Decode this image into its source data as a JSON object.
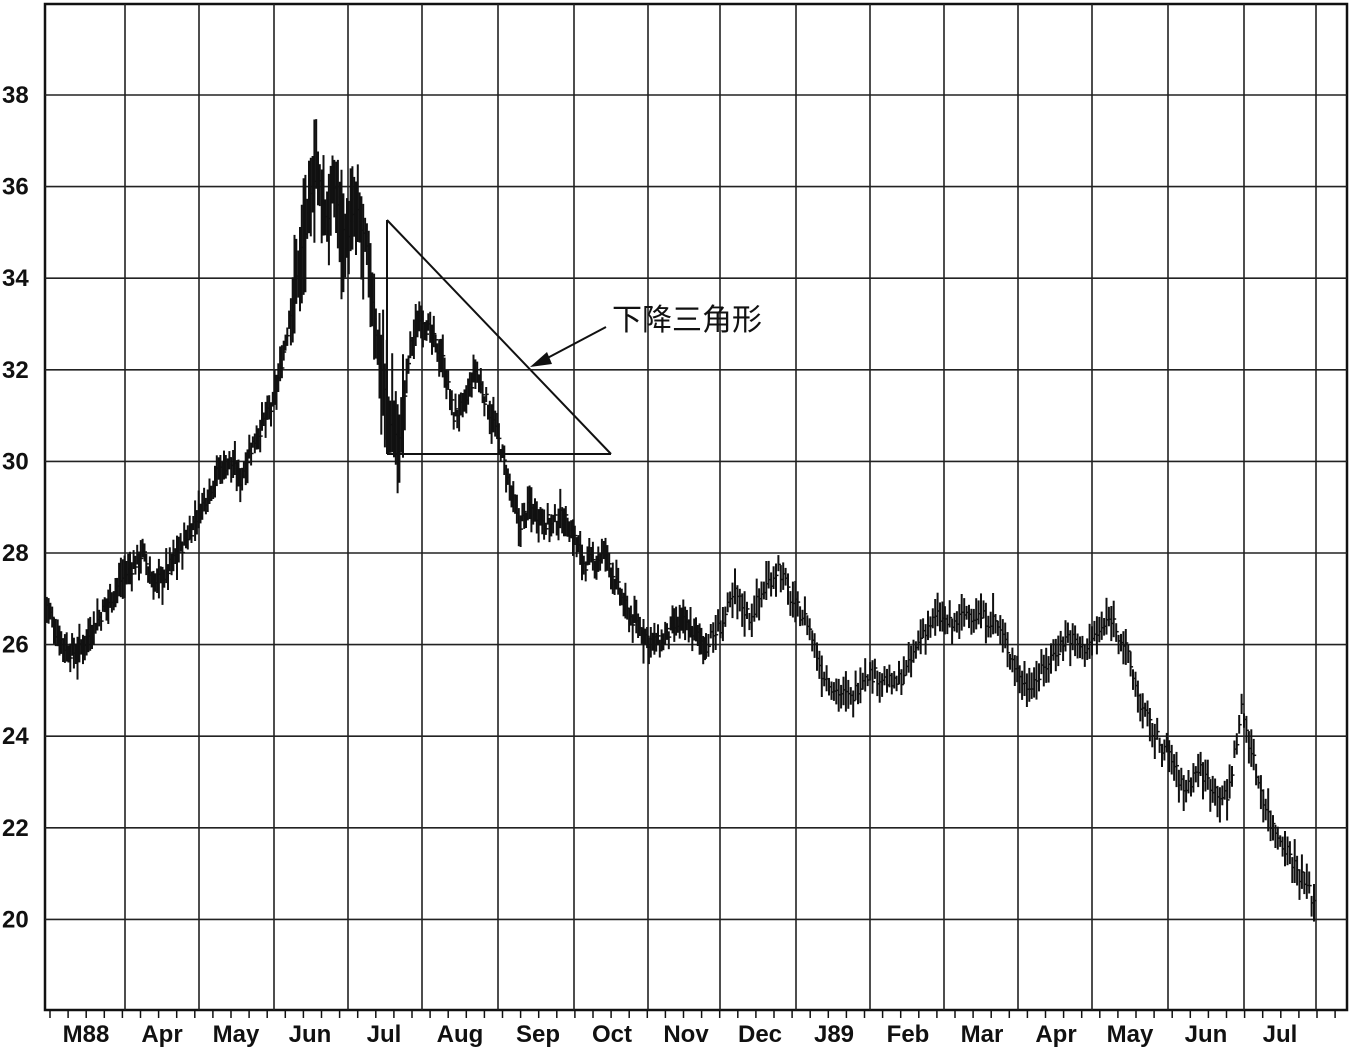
{
  "chart_data": {
    "type": "bar",
    "subtype": "ohlc-price-bars",
    "title": "",
    "xlabel": "",
    "ylabel": "",
    "ylim": [
      18,
      40
    ],
    "yticks": [
      20,
      22,
      24,
      26,
      28,
      30,
      32,
      34,
      36,
      38
    ],
    "x_tick_labels": [
      "M88",
      "Apr",
      "May",
      "Jun",
      "Jul",
      "Aug",
      "Sep",
      "Oct",
      "Nov",
      "Dec",
      "J89",
      "Feb",
      "Mar",
      "Apr",
      "May",
      "Jun",
      "Jul"
    ],
    "grid": true,
    "legend": "none",
    "x_index_range": [
      0,
      365
    ],
    "anchors": [
      [
        0,
        27.0
      ],
      [
        6,
        26.3
      ],
      [
        12,
        25.9
      ],
      [
        18,
        25.8
      ],
      [
        24,
        26.2
      ],
      [
        30,
        26.6
      ],
      [
        36,
        27.0
      ],
      [
        42,
        27.4
      ],
      [
        48,
        27.7
      ],
      [
        54,
        28.0
      ],
      [
        60,
        27.3
      ],
      [
        66,
        27.5
      ],
      [
        72,
        27.9
      ],
      [
        78,
        28.3
      ],
      [
        84,
        28.8
      ],
      [
        90,
        29.3
      ],
      [
        96,
        29.8
      ],
      [
        102,
        30.0
      ],
      [
        108,
        29.6
      ],
      [
        114,
        30.3
      ],
      [
        120,
        30.8
      ],
      [
        126,
        31.2
      ],
      [
        132,
        32.4
      ],
      [
        138,
        33.8
      ],
      [
        144,
        35.0
      ],
      [
        150,
        36.5
      ],
      [
        156,
        35.2
      ],
      [
        160,
        36.0
      ],
      [
        166,
        34.8
      ],
      [
        172,
        35.5
      ],
      [
        178,
        34.6
      ],
      [
        184,
        32.5
      ],
      [
        190,
        31.0
      ],
      [
        196,
        30.4
      ],
      [
        202,
        32.5
      ],
      [
        208,
        33.2
      ],
      [
        214,
        32.7
      ],
      [
        220,
        32.2
      ],
      [
        226,
        31.0
      ],
      [
        232,
        31.2
      ],
      [
        238,
        32.0
      ],
      [
        244,
        31.3
      ],
      [
        250,
        30.6
      ],
      [
        256,
        29.6
      ],
      [
        262,
        28.6
      ],
      [
        268,
        29.0
      ],
      [
        274,
        28.8
      ],
      [
        280,
        28.6
      ],
      [
        286,
        28.8
      ],
      [
        292,
        28.4
      ],
      [
        298,
        27.8
      ],
      [
        304,
        27.8
      ],
      [
        310,
        28.0
      ],
      [
        316,
        27.3
      ],
      [
        322,
        26.7
      ],
      [
        328,
        26.4
      ],
      [
        334,
        26.1
      ],
      [
        340,
        26.0
      ],
      [
        346,
        26.3
      ],
      [
        352,
        26.5
      ],
      [
        358,
        26.3
      ],
      [
        365,
        26.0
      ]
    ],
    "anchors_part2": [
      [
        0,
        26.0
      ],
      [
        6,
        26.4
      ],
      [
        12,
        27.1
      ],
      [
        18,
        26.6
      ],
      [
        24,
        27.2
      ],
      [
        30,
        27.7
      ],
      [
        36,
        26.9
      ],
      [
        42,
        26.5
      ],
      [
        48,
        25.4
      ],
      [
        54,
        25.0
      ],
      [
        60,
        24.8
      ],
      [
        66,
        25.4
      ],
      [
        72,
        25.3
      ],
      [
        78,
        25.1
      ],
      [
        84,
        25.5
      ],
      [
        90,
        26.3
      ],
      [
        96,
        26.6
      ],
      [
        102,
        26.4
      ],
      [
        108,
        26.7
      ],
      [
        114,
        26.6
      ],
      [
        120,
        26.5
      ],
      [
        126,
        25.8
      ],
      [
        132,
        25.1
      ],
      [
        138,
        25.3
      ],
      [
        144,
        25.8
      ],
      [
        150,
        26.2
      ],
      [
        156,
        25.9
      ],
      [
        162,
        26.2
      ],
      [
        168,
        26.6
      ],
      [
        174,
        25.9
      ],
      [
        180,
        24.7
      ],
      [
        186,
        24.0
      ],
      [
        192,
        23.6
      ],
      [
        198,
        22.8
      ],
      [
        204,
        23.3
      ],
      [
        210,
        22.9
      ],
      [
        216,
        22.6
      ],
      [
        222,
        24.6
      ],
      [
        228,
        23.2
      ],
      [
        234,
        22.1
      ],
      [
        240,
        21.6
      ],
      [
        246,
        21.0
      ],
      [
        252,
        20.4
      ]
    ],
    "annotation": {
      "label": "下降三角形",
      "pattern": "descending triangle",
      "apex_upper": 35.2,
      "support_level": 30.2
    }
  }
}
